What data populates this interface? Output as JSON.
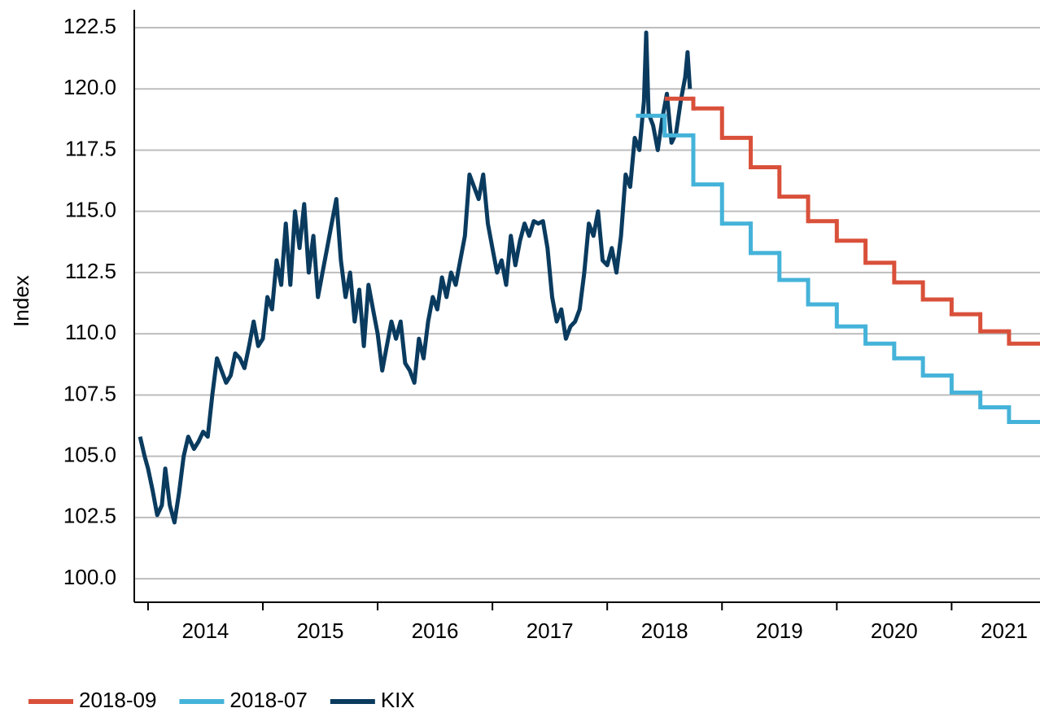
{
  "chart_data": {
    "type": "line",
    "y_label": "Index",
    "xlim": [
      2013.88,
      2021.77
    ],
    "xticks": [
      2014,
      2015,
      2016,
      2017,
      2018,
      2019,
      2020,
      2021
    ],
    "ylim": [
      99.04,
      123.23
    ],
    "yticks": [
      {
        "value": 100,
        "label": "100.0"
      },
      102.5,
      {
        "value": 105,
        "label": "105.0"
      },
      107.5,
      {
        "value": 110,
        "label": "110.0"
      },
      112.5,
      {
        "value": 115,
        "label": "115.0"
      },
      117.5,
      {
        "value": 120,
        "label": "120.0"
      },
      122.5
    ],
    "grid": true,
    "legend": "bottom-left",
    "series": [
      {
        "name": "2018-09",
        "color": "#d9503a",
        "step": true,
        "x": [
          2018.5,
          2018.75,
          2019.0,
          2019.25,
          2019.5,
          2019.75,
          2020.0,
          2020.25,
          2020.5,
          2020.75,
          2021.0,
          2021.25,
          2021.5
        ],
        "values": [
          119.6,
          119.2,
          118.0,
          116.8,
          115.6,
          114.6,
          113.8,
          112.9,
          112.1,
          111.4,
          110.8,
          110.1,
          109.6
        ]
      },
      {
        "name": "2018-07",
        "color": "#45b3d9",
        "step": true,
        "x": [
          2018.25,
          2018.5,
          2018.75,
          2019.0,
          2019.25,
          2019.5,
          2019.75,
          2020.0,
          2020.25,
          2020.5,
          2020.75,
          2021.0,
          2021.25,
          2021.5
        ],
        "values": [
          118.9,
          118.1,
          116.1,
          114.5,
          113.3,
          112.2,
          111.2,
          110.3,
          109.6,
          109.0,
          108.3,
          107.6,
          107.0,
          106.4
        ]
      },
      {
        "name": "KIX",
        "color": "#0a3b5f",
        "step": false,
        "x": [
          2013.93,
          2013.97,
          2014.0,
          2014.04,
          2014.08,
          2014.12,
          2014.15,
          2014.19,
          2014.23,
          2014.27,
          2014.31,
          2014.35,
          2014.4,
          2014.44,
          2014.48,
          2014.52,
          2014.56,
          2014.6,
          2014.64,
          2014.68,
          2014.72,
          2014.76,
          2014.8,
          2014.84,
          2014.88,
          2014.92,
          2014.96,
          2015.0,
          2015.04,
          2015.08,
          2015.12,
          2015.16,
          2015.2,
          2015.24,
          2015.28,
          2015.32,
          2015.36,
          2015.4,
          2015.44,
          2015.48,
          2015.52,
          2015.56,
          2015.6,
          2015.64,
          2015.68,
          2015.72,
          2015.76,
          2015.8,
          2015.84,
          2015.88,
          2015.92,
          2015.96,
          2016.0,
          2016.04,
          2016.08,
          2016.12,
          2016.16,
          2016.2,
          2016.24,
          2016.28,
          2016.32,
          2016.36,
          2016.4,
          2016.44,
          2016.48,
          2016.52,
          2016.56,
          2016.6,
          2016.64,
          2016.68,
          2016.72,
          2016.76,
          2016.8,
          2016.84,
          2016.88,
          2016.92,
          2016.96,
          2017.0,
          2017.04,
          2017.08,
          2017.12,
          2017.16,
          2017.2,
          2017.24,
          2017.28,
          2017.32,
          2017.36,
          2017.4,
          2017.44,
          2017.48,
          2017.52,
          2017.56,
          2017.6,
          2017.64,
          2017.68,
          2017.72,
          2017.76,
          2017.8,
          2017.84,
          2017.88,
          2017.92,
          2017.96,
          2018.0,
          2018.04,
          2018.08,
          2018.12,
          2018.16,
          2018.2,
          2018.24,
          2018.28,
          2018.32,
          2018.34,
          2018.36,
          2018.4,
          2018.44,
          2018.48,
          2018.52,
          2018.56,
          2018.6,
          2018.64,
          2018.68,
          2018.7,
          2018.72
        ],
        "values": [
          105.8,
          105.0,
          104.5,
          103.6,
          102.6,
          103.0,
          104.5,
          103.0,
          102.3,
          103.5,
          105.0,
          105.8,
          105.3,
          105.6,
          106.0,
          105.8,
          107.5,
          109.0,
          108.5,
          108.0,
          108.3,
          109.2,
          109.0,
          108.6,
          109.5,
          110.5,
          109.5,
          109.8,
          111.5,
          111.0,
          113.0,
          112.0,
          114.5,
          112.0,
          115.0,
          113.5,
          115.3,
          112.5,
          114.0,
          111.5,
          112.5,
          113.5,
          114.5,
          115.5,
          113.0,
          111.5,
          112.5,
          110.5,
          111.8,
          109.5,
          112.0,
          111.0,
          110.0,
          108.5,
          109.5,
          110.5,
          109.8,
          110.5,
          108.8,
          108.5,
          108.0,
          109.8,
          109.0,
          110.5,
          111.5,
          111.0,
          112.3,
          111.5,
          112.5,
          112.0,
          113.0,
          114.0,
          116.5,
          116.0,
          115.5,
          116.5,
          114.5,
          113.5,
          112.5,
          113.0,
          112.0,
          114.0,
          112.8,
          113.8,
          114.5,
          114.0,
          114.6,
          114.5,
          114.6,
          113.5,
          111.5,
          110.5,
          111.0,
          109.8,
          110.3,
          110.5,
          111.0,
          112.5,
          114.5,
          114.0,
          115.0,
          113.0,
          112.8,
          113.5,
          112.5,
          114.0,
          116.5,
          116.0,
          118.0,
          117.5,
          119.5,
          122.3,
          119.0,
          118.5,
          117.5,
          118.8,
          119.8,
          117.8,
          118.2,
          119.5,
          120.5,
          121.5,
          120.0
        ]
      }
    ]
  }
}
